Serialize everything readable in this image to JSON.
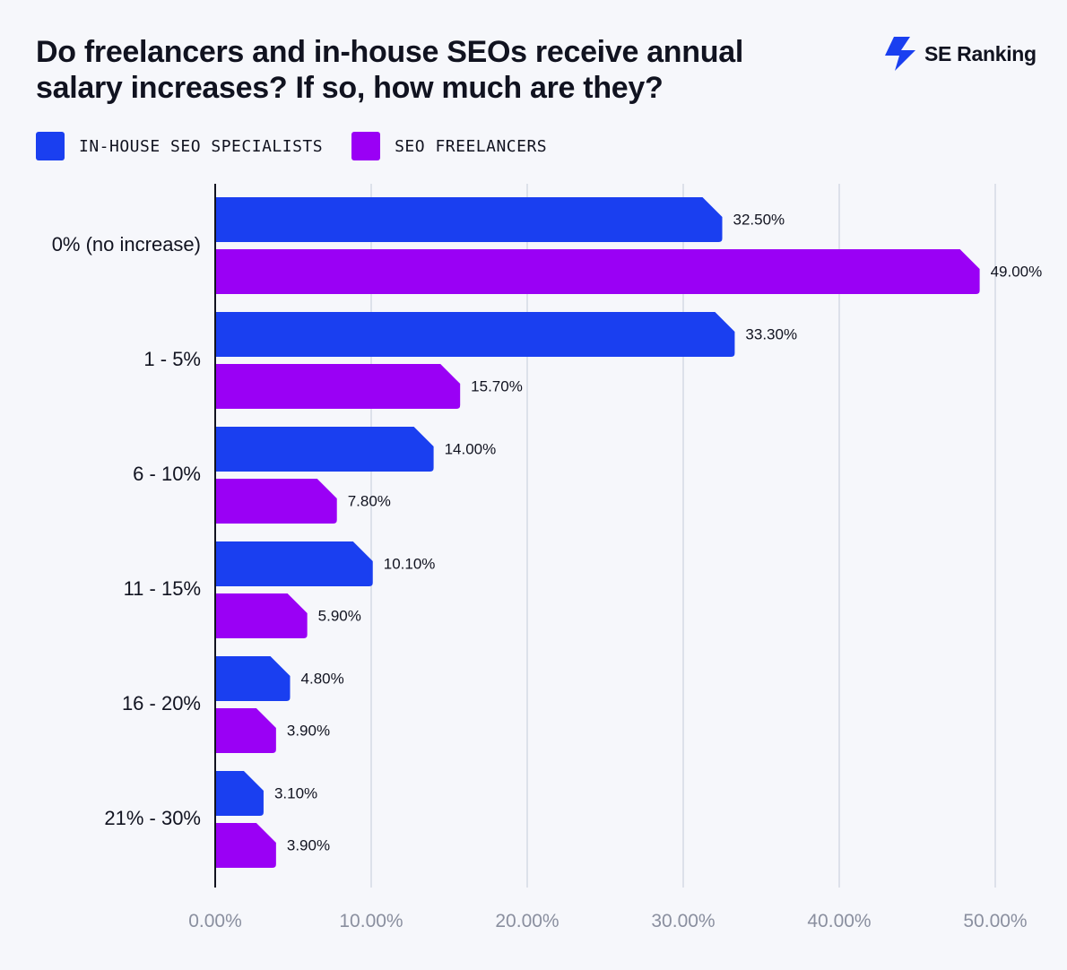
{
  "colors": {
    "in_house": "#1a3ff0",
    "freelancers": "#9a00f5",
    "grid": "#dde1ea",
    "axis": "#111320",
    "tick": "#8a8f9f"
  },
  "brand": {
    "name": "SE Ranking",
    "icon": "bolt-logo-icon"
  },
  "chart_data": {
    "type": "bar",
    "orientation": "horizontal",
    "title": "Do freelancers and in-house SEOs receive annual salary increases? If so, how much are they?",
    "categories": [
      "0% (no increase)",
      "1 - 5%",
      "6 - 10%",
      "11 - 15%",
      "16 - 20%",
      "21% - 30%"
    ],
    "series": [
      {
        "name": "IN-HOUSE SEO SPECIALISTS",
        "values": [
          32.5,
          33.3,
          14.0,
          10.1,
          4.8,
          3.1
        ]
      },
      {
        "name": "SEO FREELANCERS",
        "values": [
          49.0,
          15.7,
          7.8,
          5.9,
          3.9,
          3.9
        ]
      }
    ],
    "xlim": [
      0,
      50
    ],
    "xticks": [
      0,
      10,
      20,
      30,
      40,
      50
    ],
    "tick_labels": [
      "0.00%",
      "10.00%",
      "20.00%",
      "30.00%",
      "40.00%",
      "50.00%"
    ],
    "value_labels": [
      [
        "32.50%",
        "33.30%",
        "14.00%",
        "10.10%",
        "4.80%",
        "3.10%"
      ],
      [
        "49.00%",
        "15.70%",
        "7.80%",
        "5.90%",
        "3.90%",
        "3.90%"
      ]
    ],
    "grid": true,
    "legend": "top-left"
  }
}
